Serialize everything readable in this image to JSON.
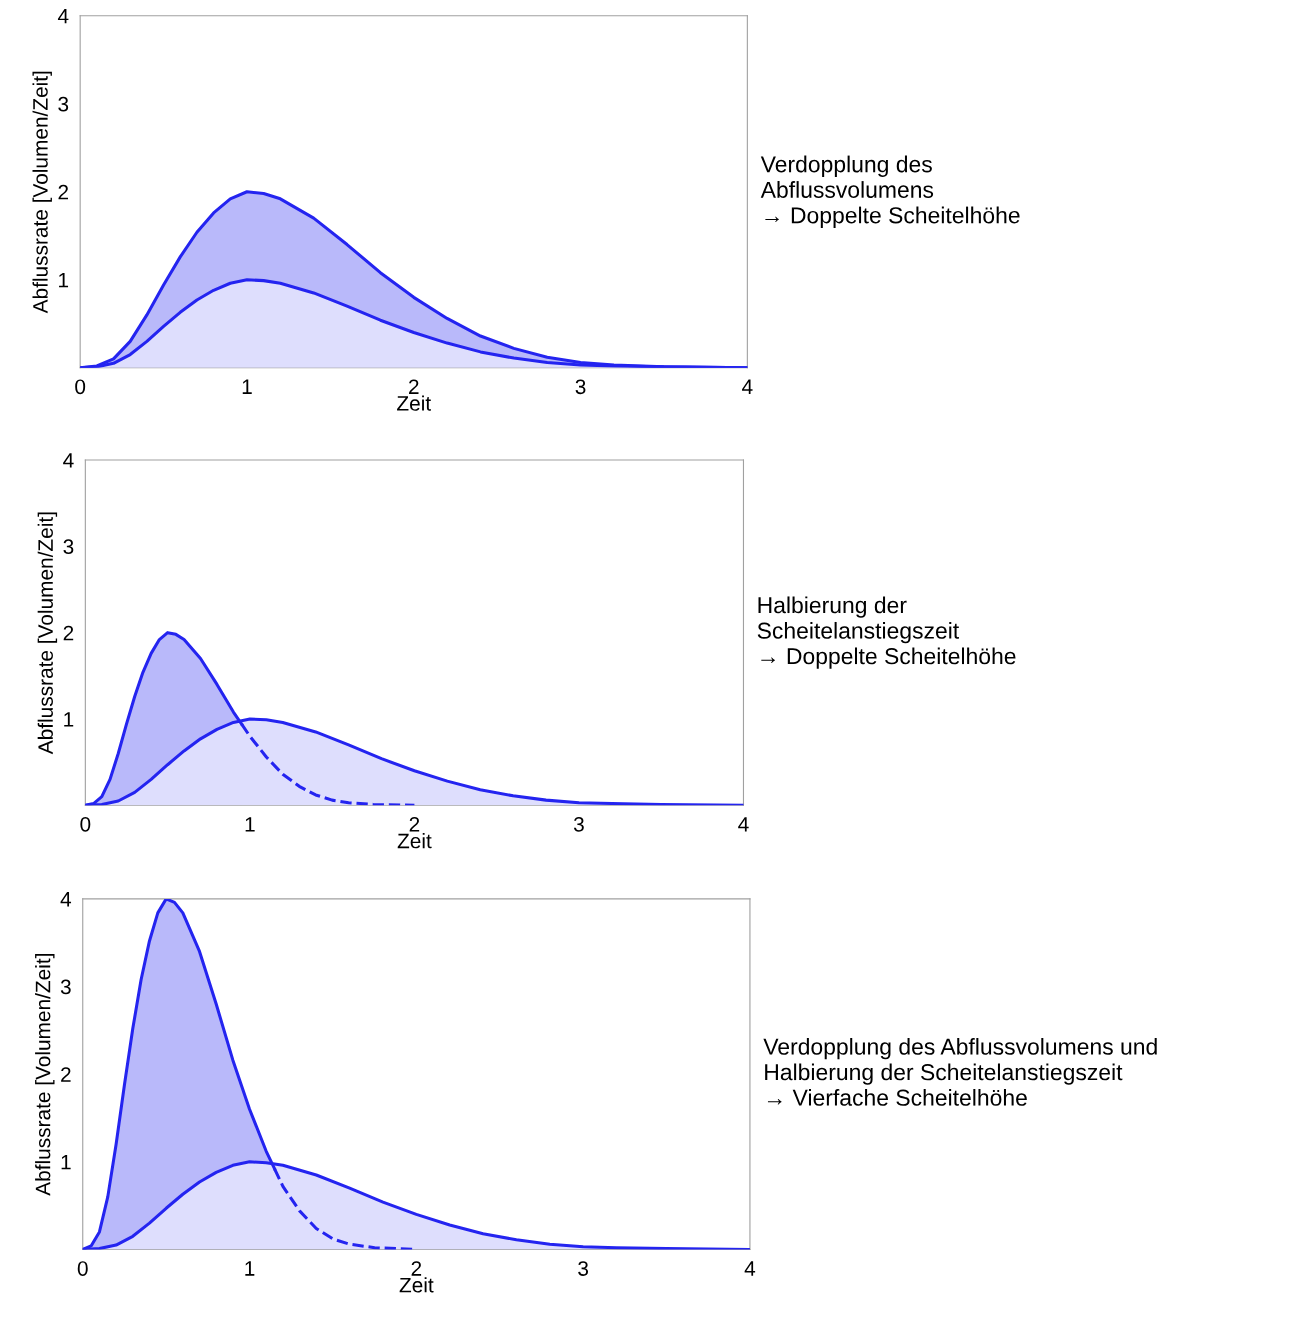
{
  "chart_data": [
    {
      "type": "area",
      "xlabel": "Zeit",
      "ylabel": "Abflussrate [Volumen/Zeit]",
      "xlim": [
        0,
        4
      ],
      "ylim": [
        0,
        4
      ],
      "xticks": [
        0,
        1,
        2,
        3,
        4
      ],
      "yticks": [
        1,
        2,
        3,
        4
      ],
      "grid": false,
      "annotations": [
        "Verdopplung des\nAbflussvolumens\n→ Doppelte Scheitelhöhe"
      ],
      "series": [
        {
          "color": "#2424f0",
          "x": [
            0,
            0.1,
            0.2,
            0.3,
            0.4,
            0.5,
            0.6,
            0.7,
            0.8,
            0.9,
            1.0,
            1.1,
            1.2,
            1.4,
            1.6,
            1.8,
            2.0,
            2.2,
            2.4,
            2.6,
            2.8,
            3.0,
            3.2,
            3.5,
            4.0
          ],
          "values": [
            0,
            0.02,
            0.1,
            0.3,
            0.6,
            0.94,
            1.26,
            1.54,
            1.76,
            1.92,
            2.0,
            1.98,
            1.92,
            1.7,
            1.4,
            1.08,
            0.8,
            0.56,
            0.36,
            0.22,
            0.12,
            0.06,
            0.03,
            0.01,
            0
          ]
        },
        {
          "color": "#2424f0",
          "x": [
            0,
            0.1,
            0.2,
            0.3,
            0.4,
            0.5,
            0.6,
            0.7,
            0.8,
            0.9,
            1.0,
            1.1,
            1.2,
            1.4,
            1.6,
            1.8,
            2.0,
            2.2,
            2.4,
            2.6,
            2.8,
            3.0,
            3.2,
            3.5,
            4.0
          ],
          "values": [
            0,
            0.01,
            0.05,
            0.15,
            0.3,
            0.47,
            0.63,
            0.77,
            0.88,
            0.96,
            1.0,
            0.99,
            0.96,
            0.85,
            0.7,
            0.54,
            0.4,
            0.28,
            0.18,
            0.11,
            0.06,
            0.03,
            0.02,
            0.01,
            0
          ]
        }
      ]
    },
    {
      "type": "area",
      "xlabel": "Zeit",
      "ylabel": "Abflussrate [Volumen/Zeit]",
      "xlim": [
        0,
        4
      ],
      "ylim": [
        0,
        4
      ],
      "xticks": [
        0,
        1,
        2,
        3,
        4
      ],
      "yticks": [
        1,
        2,
        3,
        4
      ],
      "grid": false,
      "annotations": [
        "Halbierung der\nScheitelanstiegszeit\n→ Doppelte Scheitelhöhe"
      ],
      "series": [
        {
          "color": "#2424f0",
          "x": [
            0,
            0.05,
            0.1,
            0.15,
            0.2,
            0.25,
            0.3,
            0.35,
            0.4,
            0.45,
            0.5,
            0.55,
            0.6,
            0.7,
            0.8,
            0.9,
            0.95
          ],
          "values": [
            0,
            0.02,
            0.1,
            0.3,
            0.6,
            0.94,
            1.26,
            1.54,
            1.76,
            1.92,
            2.0,
            1.98,
            1.92,
            1.7,
            1.4,
            1.08,
            0.94
          ]
        },
        {
          "color": "#2424f0",
          "x": [
            0,
            0.1,
            0.2,
            0.3,
            0.4,
            0.5,
            0.6,
            0.7,
            0.8,
            0.9,
            1.0,
            1.1,
            1.2,
            1.4,
            1.6,
            1.8,
            2.0,
            2.2,
            2.4,
            2.6,
            2.8,
            3.0,
            3.2,
            3.5,
            4.0
          ],
          "values": [
            0,
            0.01,
            0.05,
            0.15,
            0.3,
            0.47,
            0.63,
            0.77,
            0.88,
            0.96,
            1.0,
            0.99,
            0.96,
            0.85,
            0.7,
            0.54,
            0.4,
            0.28,
            0.18,
            0.11,
            0.06,
            0.03,
            0.02,
            0.01,
            0
          ]
        },
        {
          "type": "line",
          "line_style": "dashed",
          "color": "#2424f0",
          "x": [
            0.95,
            1.0,
            1.1,
            1.2,
            1.3,
            1.4,
            1.5,
            1.6,
            1.75,
            2.0
          ],
          "values": [
            0.94,
            0.8,
            0.56,
            0.36,
            0.22,
            0.12,
            0.06,
            0.03,
            0.01,
            0
          ]
        }
      ]
    },
    {
      "type": "area",
      "xlabel": "Zeit",
      "ylabel": "Abflussrate [Volumen/Zeit]",
      "xlim": [
        0,
        4
      ],
      "ylim": [
        0,
        4
      ],
      "xticks": [
        0,
        1,
        2,
        3,
        4
      ],
      "yticks": [
        1,
        2,
        3,
        4
      ],
      "grid": false,
      "annotations": [
        "Verdopplung des Abflussvolumens und\nHalbierung der Scheitelanstiegszeit\n→ Vierfache Scheitelhöhe"
      ],
      "series": [
        {
          "color": "#2424f0",
          "x": [
            0,
            0.05,
            0.1,
            0.15,
            0.2,
            0.25,
            0.3,
            0.35,
            0.4,
            0.45,
            0.5,
            0.55,
            0.6,
            0.7,
            0.8,
            0.9,
            1.0,
            1.1,
            1.15
          ],
          "values": [
            0,
            0.04,
            0.2,
            0.6,
            1.2,
            1.88,
            2.52,
            3.08,
            3.52,
            3.84,
            4.0,
            3.96,
            3.84,
            3.4,
            2.8,
            2.16,
            1.6,
            1.12,
            0.92
          ]
        },
        {
          "color": "#2424f0",
          "x": [
            0,
            0.1,
            0.2,
            0.3,
            0.4,
            0.5,
            0.6,
            0.7,
            0.8,
            0.9,
            1.0,
            1.1,
            1.2,
            1.4,
            1.6,
            1.8,
            2.0,
            2.2,
            2.4,
            2.6,
            2.8,
            3.0,
            3.2,
            3.5,
            4.0
          ],
          "values": [
            0,
            0.01,
            0.05,
            0.15,
            0.3,
            0.47,
            0.63,
            0.77,
            0.88,
            0.96,
            1.0,
            0.99,
            0.96,
            0.85,
            0.7,
            0.54,
            0.4,
            0.28,
            0.18,
            0.11,
            0.06,
            0.03,
            0.02,
            0.01,
            0
          ]
        },
        {
          "type": "line",
          "line_style": "dashed",
          "color": "#2424f0",
          "x": [
            1.15,
            1.2,
            1.3,
            1.4,
            1.5,
            1.6,
            1.75,
            2.0
          ],
          "values": [
            0.92,
            0.72,
            0.44,
            0.24,
            0.12,
            0.06,
            0.02,
            0
          ]
        }
      ]
    }
  ]
}
